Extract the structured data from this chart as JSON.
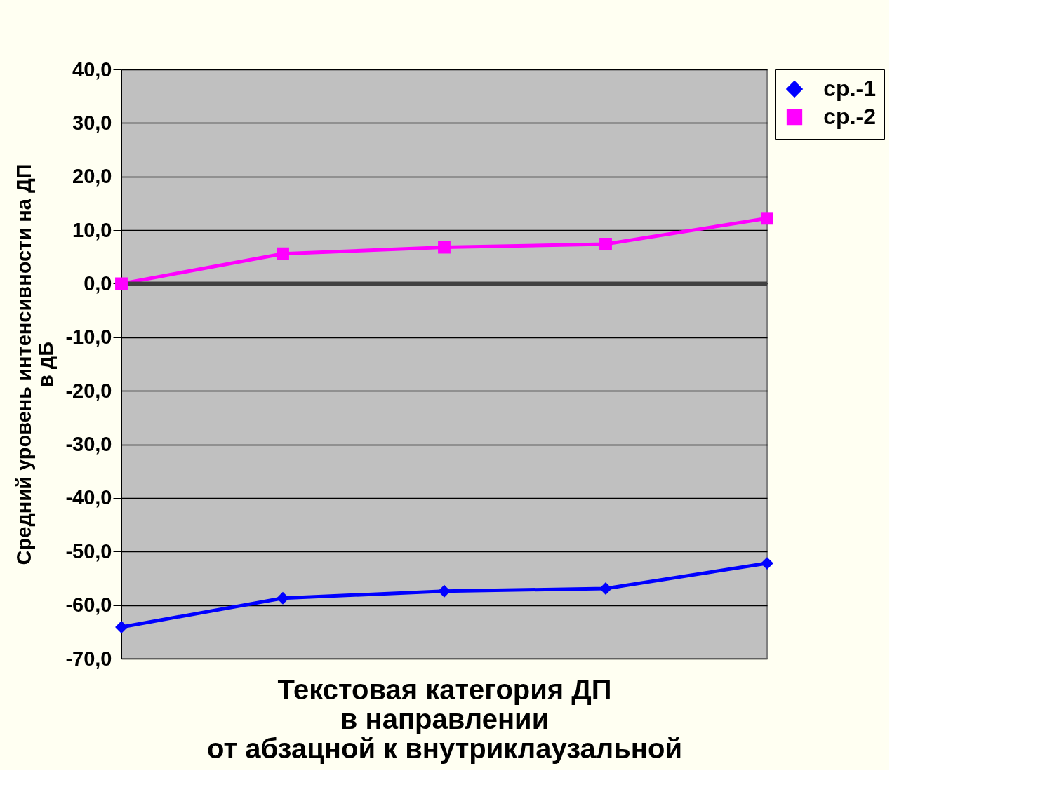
{
  "chart_data": {
    "type": "line",
    "xlabel": "Текстовая категория ДП\nв направлении\nот абзацной к внутриклаузальной",
    "ylabel": "Средний уровень интенсивности на ДП\nв дБ",
    "categories": [
      null,
      null,
      null,
      null,
      null
    ],
    "series": [
      {
        "name": "ср.-1",
        "color": "#0000ff",
        "marker": "diamond",
        "values": [
          -64.1,
          -58.7,
          -57.4,
          -56.9,
          -52.2
        ]
      },
      {
        "name": "ср.-2",
        "color": "#ff00ff",
        "marker": "square",
        "values": [
          0,
          5.6,
          6.8,
          7.4,
          12.2
        ]
      }
    ],
    "ylim": [
      -70,
      40
    ],
    "yticks": [
      {
        "value": 40,
        "label": "40,0"
      },
      {
        "value": 30,
        "label": "30,0"
      },
      {
        "value": 20,
        "label": "20,0"
      },
      {
        "value": 10,
        "label": "10,0"
      },
      {
        "value": 0,
        "label": "0,0"
      },
      {
        "value": -10,
        "label": "-10,0"
      },
      {
        "value": -20,
        "label": "-20,0"
      },
      {
        "value": -30,
        "label": "-30,0"
      },
      {
        "value": -40,
        "label": "-40,0"
      },
      {
        "value": -50,
        "label": "-50,0"
      },
      {
        "value": -60,
        "label": "-60,0"
      },
      {
        "value": -70,
        "label": "-70,0"
      }
    ],
    "ref_lines": [
      {
        "axis": "y",
        "value": 0,
        "color": "#404040"
      }
    ],
    "grid": "y",
    "legend": "right",
    "tick_labels": "y",
    "line_style": "solid"
  }
}
